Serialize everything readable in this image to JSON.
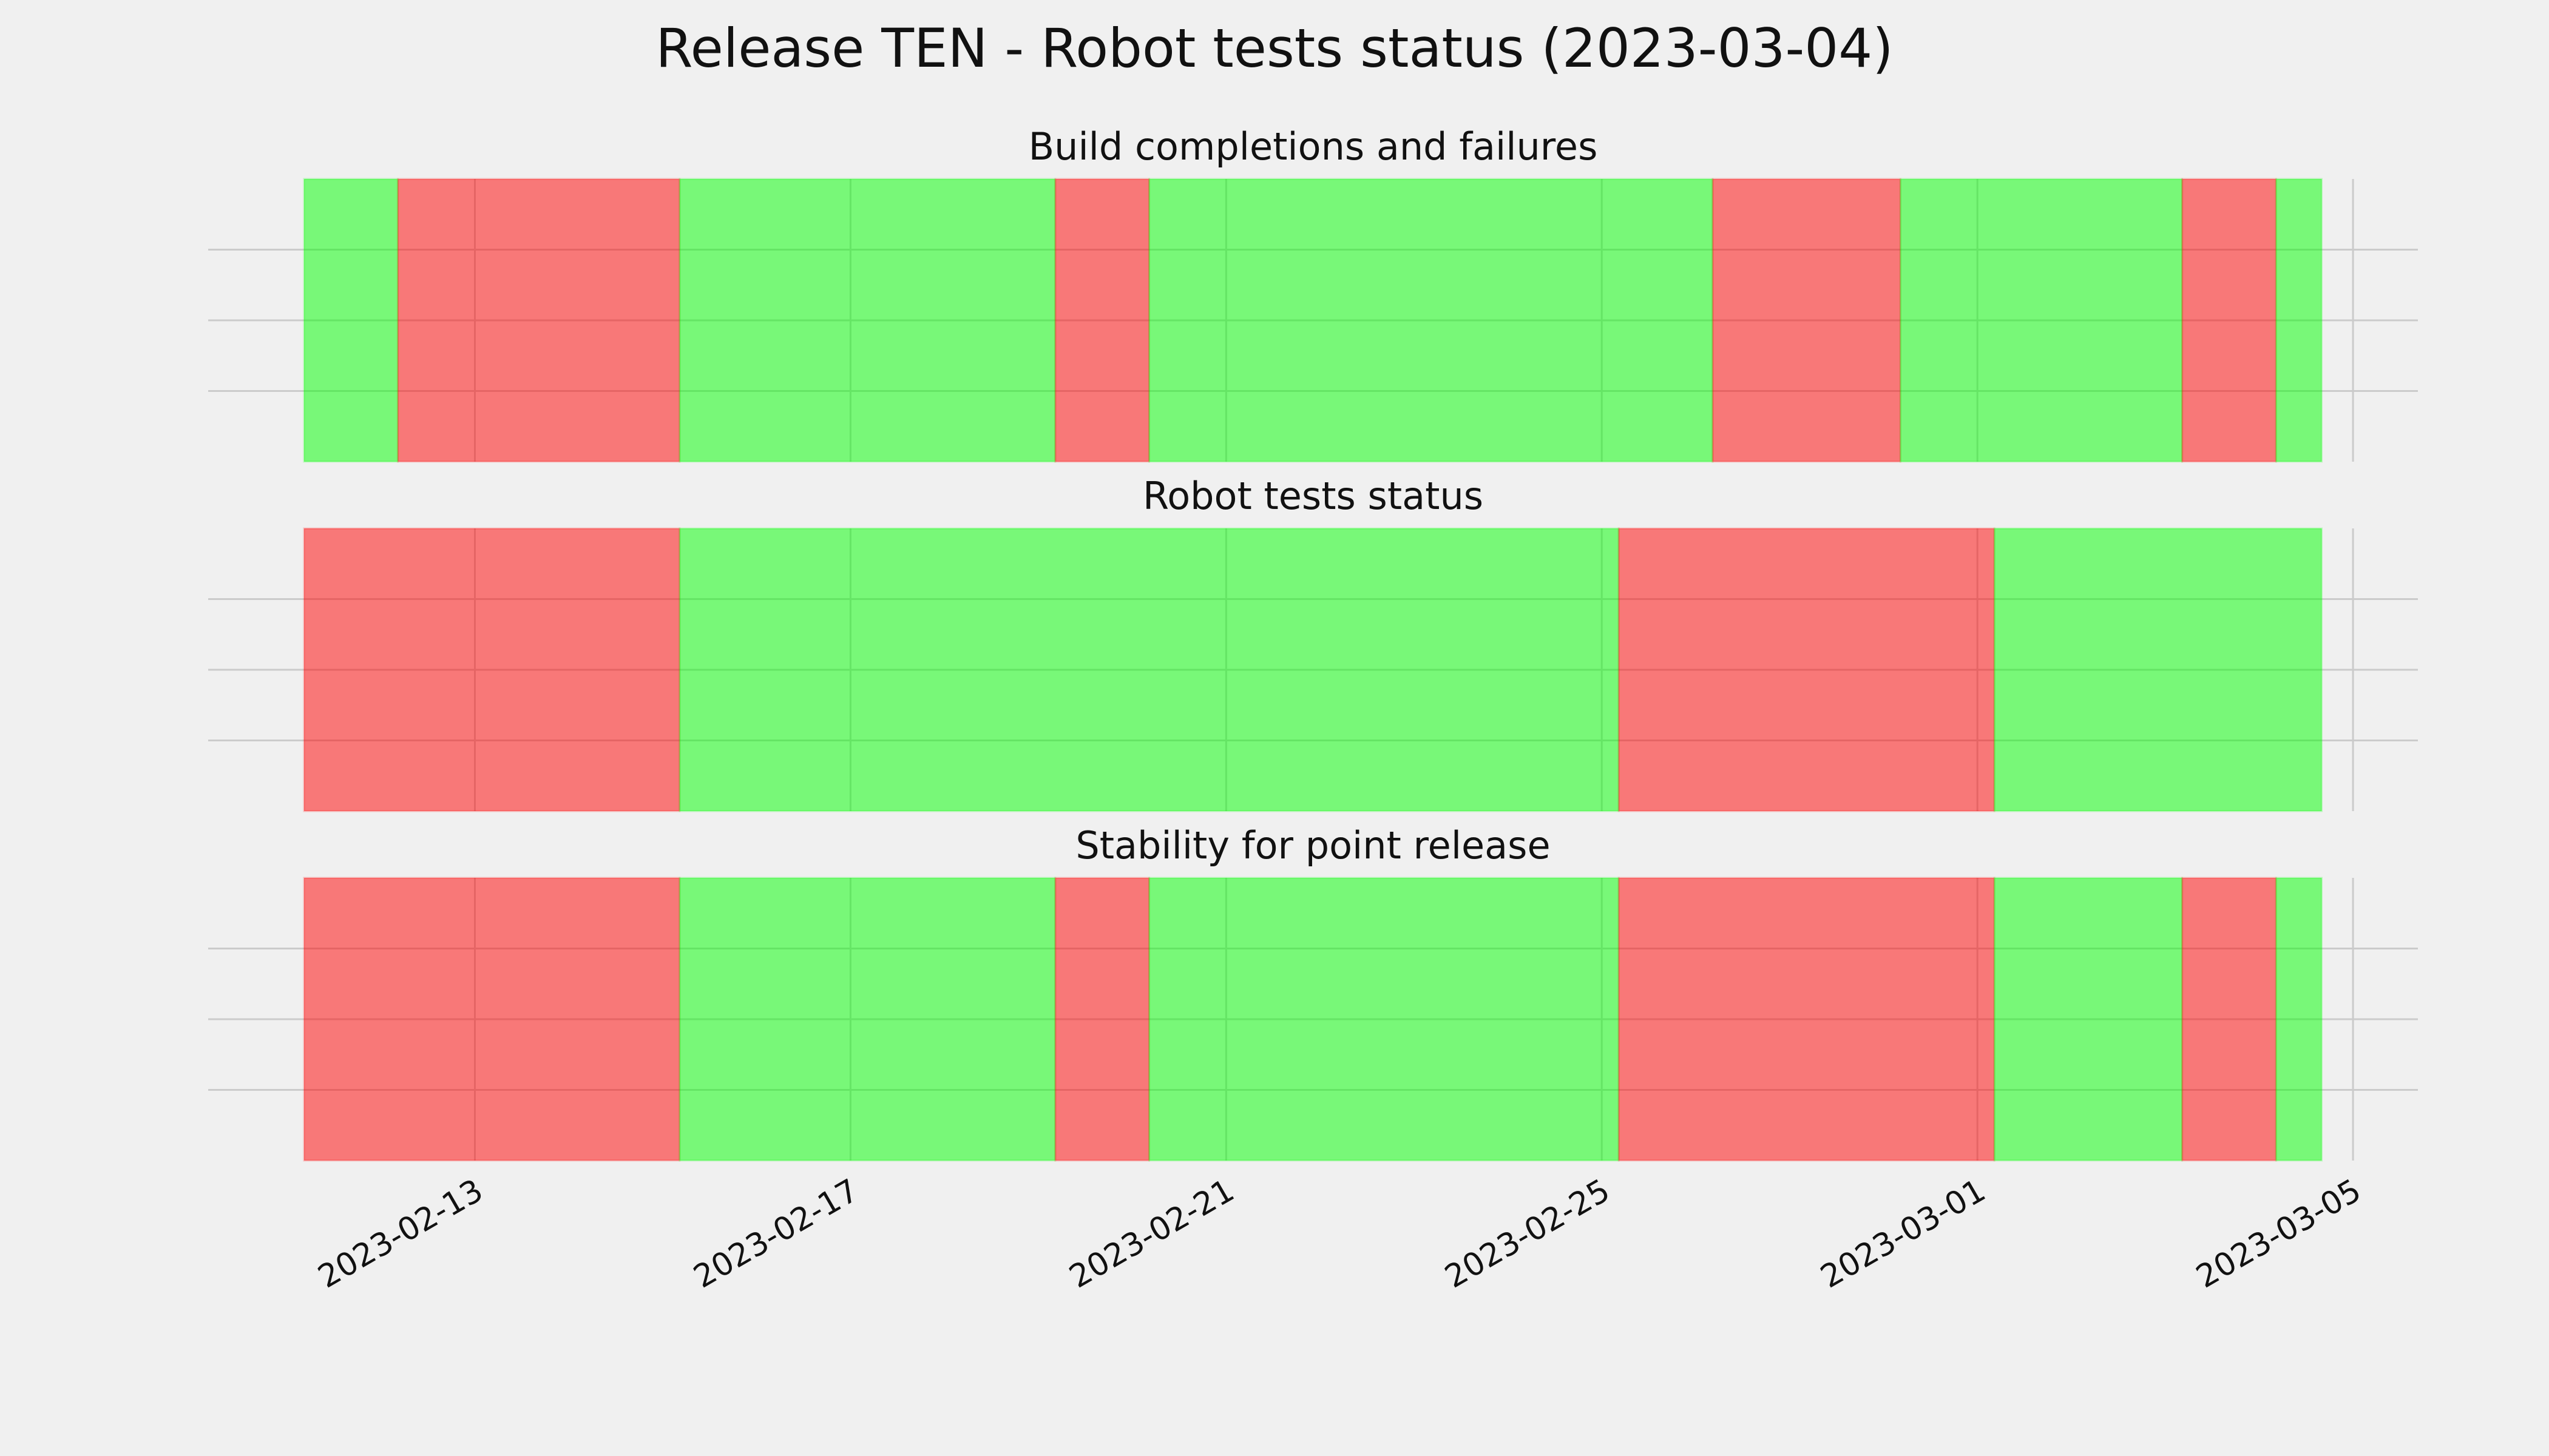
{
  "title": "Release TEN - Robot tests status (2023-03-04)",
  "chart_data": [
    {
      "type": "span",
      "title": "Build completions and failures",
      "alpha": 0.5,
      "grid": true,
      "ylim": [
        0,
        1
      ],
      "yticks": [
        0.25,
        0.5,
        0.75
      ],
      "segments": [
        {
          "start": "2023-02-11T04:20",
          "end": "2023-02-12T04:20",
          "color": "#00ff00"
        },
        {
          "start": "2023-02-12T04:20",
          "end": "2023-02-15T04:20",
          "color": "#ff0000"
        },
        {
          "start": "2023-02-15T04:20",
          "end": "2023-02-19T04:20",
          "color": "#00ff00"
        },
        {
          "start": "2023-02-19T04:20",
          "end": "2023-02-20T04:20",
          "color": "#ff0000"
        },
        {
          "start": "2023-02-20T04:20",
          "end": "2023-02-26T04:20",
          "color": "#00ff00"
        },
        {
          "start": "2023-02-26T04:20",
          "end": "2023-02-28T04:20",
          "color": "#ff0000"
        },
        {
          "start": "2023-02-28T04:20",
          "end": "2023-03-03T04:20",
          "color": "#00ff00"
        },
        {
          "start": "2023-03-03T04:20",
          "end": "2023-03-04T04:20",
          "color": "#ff0000"
        },
        {
          "start": "2023-03-04T04:20",
          "end": "2023-03-04T16:00",
          "color": "#00ff00"
        }
      ]
    },
    {
      "type": "span",
      "title": "Robot tests status",
      "alpha": 0.5,
      "grid": true,
      "ylim": [
        0,
        1
      ],
      "yticks": [
        0.25,
        0.5,
        0.75
      ],
      "segments": [
        {
          "start": "2023-02-11T04:20",
          "end": "2023-02-15T04:20",
          "color": "#ff0000"
        },
        {
          "start": "2023-02-15T04:20",
          "end": "2023-02-25T04:20",
          "color": "#00ff00"
        },
        {
          "start": "2023-02-25T04:20",
          "end": "2023-03-01T04:20",
          "color": "#ff0000"
        },
        {
          "start": "2023-03-01T04:20",
          "end": "2023-03-04T16:00",
          "color": "#00ff00"
        }
      ]
    },
    {
      "type": "span",
      "title": "Stability for point release",
      "alpha": 0.5,
      "grid": true,
      "ylim": [
        0,
        1
      ],
      "yticks": [
        0.25,
        0.5,
        0.75
      ],
      "xlim": [
        "2023-02-10T03:50",
        "2023-03-05T16:35"
      ],
      "xticks": [
        "2023-02-13",
        "2023-02-17",
        "2023-02-21",
        "2023-02-25",
        "2023-03-01",
        "2023-03-05"
      ],
      "segments": [
        {
          "start": "2023-02-11T04:20",
          "end": "2023-02-15T04:20",
          "color": "#ff0000"
        },
        {
          "start": "2023-02-15T04:20",
          "end": "2023-02-19T04:20",
          "color": "#00ff00"
        },
        {
          "start": "2023-02-19T04:20",
          "end": "2023-02-20T04:20",
          "color": "#ff0000"
        },
        {
          "start": "2023-02-20T04:20",
          "end": "2023-02-25T04:20",
          "color": "#00ff00"
        },
        {
          "start": "2023-02-25T04:20",
          "end": "2023-03-01T04:20",
          "color": "#ff0000"
        },
        {
          "start": "2023-03-01T04:20",
          "end": "2023-03-03T04:20",
          "color": "#00ff00"
        },
        {
          "start": "2023-03-03T04:20",
          "end": "2023-03-04T04:20",
          "color": "#ff0000"
        },
        {
          "start": "2023-03-04T04:20",
          "end": "2023-03-04T16:00",
          "color": "#00ff00"
        }
      ]
    }
  ]
}
